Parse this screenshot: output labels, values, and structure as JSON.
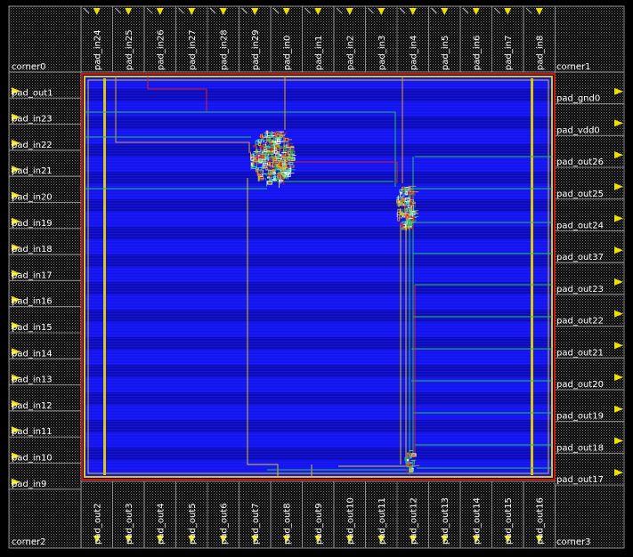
{
  "colors": {
    "background": "#000000",
    "pad_cell": "#8c8c8c",
    "core_fill": "#1414f0",
    "core_band": "#0b0bb4",
    "power_ring": "#d8c814",
    "io_ring": "#c81414",
    "route_h": "#20c850",
    "route_v": "#d8c814",
    "route_red": "#e02020",
    "label": "#ffffff",
    "arrow": "#f0e000"
  },
  "corners": [
    "corner0",
    "corner1",
    "corner2",
    "corner3"
  ],
  "pads_top": [
    "pad_in24",
    "pad_in25",
    "pad_in26",
    "pad_in27",
    "pad_in28",
    "pad_in29",
    "pad_in0",
    "pad_in1",
    "pad_in2",
    "pad_in3",
    "pad_in4",
    "pad_in5",
    "pad_in6",
    "pad_in7",
    "pad_in8"
  ],
  "pads_bottom": [
    "pad_out2",
    "pad_out3",
    "pad_out4",
    "pad_out5",
    "pad_out6",
    "pad_out7",
    "pad_out8",
    "pad_out9",
    "pad_out10",
    "pad_out11",
    "pad_out12",
    "pad_out13",
    "pad_out14",
    "pad_out15",
    "pad_out16"
  ],
  "pads_left": [
    "pad_out1",
    "pad_in23",
    "pad_in22",
    "pad_in21",
    "pad_in20",
    "pad_in19",
    "pad_in18",
    "pad_in17",
    "pad_in16",
    "pad_in15",
    "pad_in14",
    "pad_in13",
    "pad_in12",
    "pad_in11",
    "pad_in10",
    "pad_in9"
  ],
  "pads_right": [
    "pad_gnd0",
    "pad_vdd0",
    "pad_out26",
    "pad_out25",
    "pad_out24",
    "pad_out37",
    "pad_out23",
    "pad_out22",
    "pad_out21",
    "pad_out20",
    "pad_out19",
    "pad_out18",
    "pad_out17"
  ]
}
